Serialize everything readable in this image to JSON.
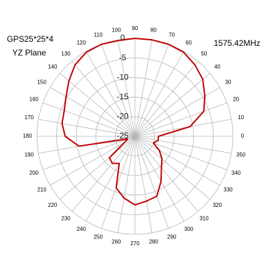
{
  "chart_data": {
    "type": "polar",
    "annotations": [
      "GPS25*25*4",
      "YZ Plane",
      "1575.42MHz"
    ],
    "theta": [
      0,
      10,
      20,
      30,
      40,
      50,
      60,
      70,
      80,
      90,
      100,
      110,
      120,
      130,
      140,
      150,
      160,
      170,
      180,
      190,
      200,
      210,
      220,
      230,
      240,
      250,
      260,
      270,
      280,
      290,
      300,
      310,
      320,
      330,
      340,
      350
    ],
    "values": [
      -19,
      -10.7,
      -6.3,
      -4.4,
      -2.4,
      -1.2,
      -0.2,
      0,
      0,
      0,
      -0.2,
      0,
      -0.2,
      -1.2,
      -3,
      -4.7,
      -5.8,
      -6.1,
      -7.2,
      -10.5,
      -23,
      -22,
      -16.5,
      -16,
      -17,
      -11,
      -9,
      -7.5,
      -8.2,
      -8.7,
      -11.7,
      -14.5,
      -16,
      -17.8,
      -20,
      -19
    ],
    "color": "#c00000",
    "rlim": [
      -25,
      0
    ],
    "rticks": [
      0,
      -5,
      -10,
      -15,
      -20,
      -25
    ],
    "thetaticks": [
      0,
      10,
      20,
      30,
      40,
      50,
      60,
      70,
      80,
      90,
      100,
      110,
      120,
      130,
      140,
      150,
      160,
      170,
      180,
      190,
      200,
      210,
      220,
      230,
      240,
      250,
      260,
      270,
      280,
      290,
      300,
      310,
      320,
      330,
      340,
      350
    ],
    "grid": true
  }
}
